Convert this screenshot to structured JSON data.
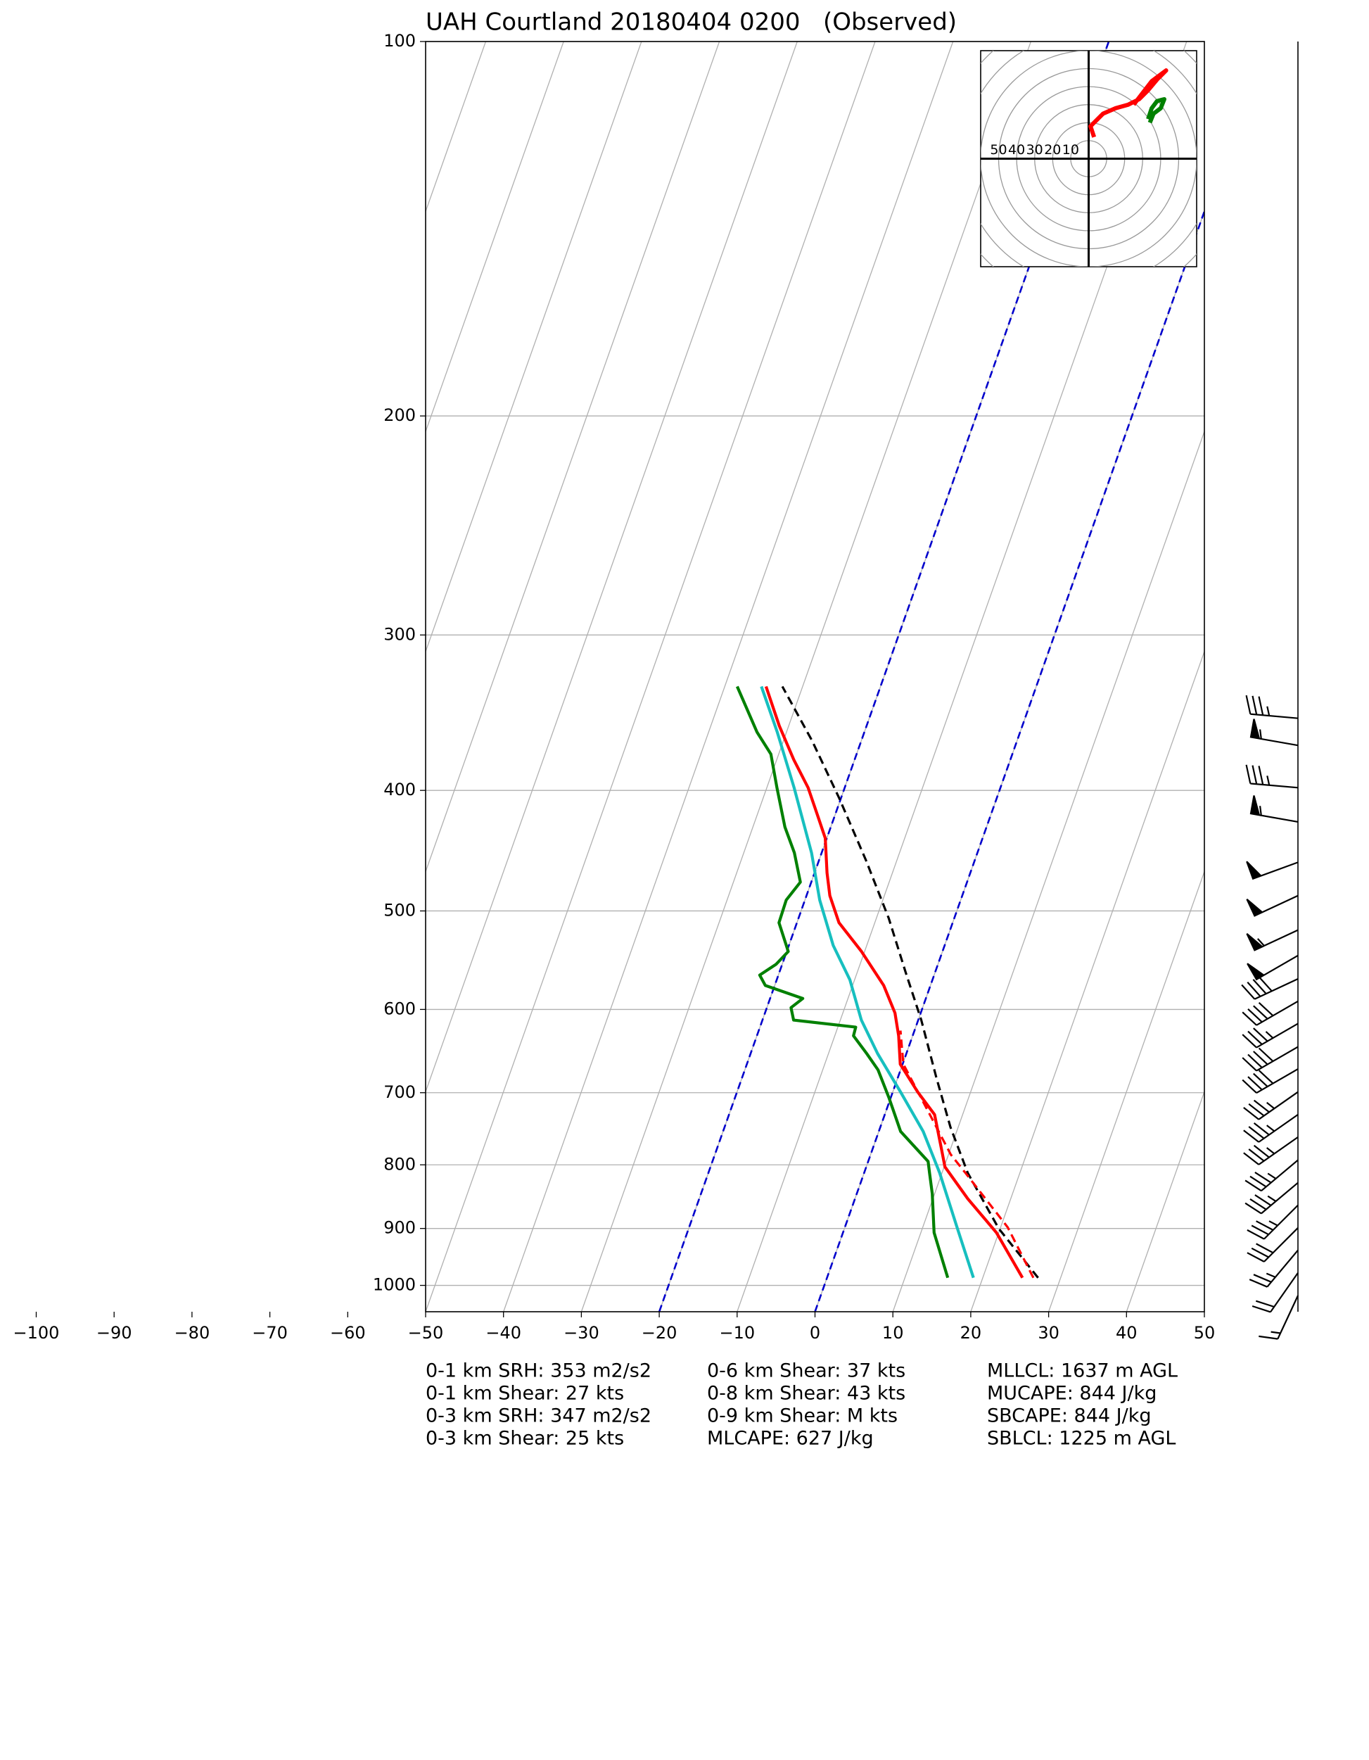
{
  "chart_data": {
    "type": "skewt",
    "title": "UAH Courtland 20180404 0200   (Observed)",
    "xlim": [
      -50,
      50
    ],
    "ylim": [
      1050,
      100
    ],
    "xticks": [
      {
        "value": -100,
        "label": "−100"
      },
      {
        "value": -90,
        "label": "−90"
      },
      {
        "value": -80,
        "label": "−80"
      },
      {
        "value": -70,
        "label": "−70"
      },
      {
        "value": -60,
        "label": "−60"
      },
      {
        "value": -50,
        "label": "−50"
      },
      {
        "value": -40,
        "label": "−40"
      },
      {
        "value": -30,
        "label": "−30"
      },
      {
        "value": -20,
        "label": "−20"
      },
      {
        "value": -10,
        "label": "−10"
      },
      0,
      10,
      20,
      30,
      40,
      50
    ],
    "yticks": [
      100,
      200,
      300,
      400,
      500,
      600,
      700,
      800,
      900,
      1000
    ],
    "log_y": true,
    "grid": true,
    "highlight_isotherms": {
      "color": "#0000cc",
      "values": [
        -20,
        0
      ]
    },
    "series": [
      {
        "color": "#ff0000",
        "dashed": false,
        "values": [
          986,
          907,
          852,
          803,
          776,
          729,
          699,
          664,
          630,
          604,
          574,
          539,
          511,
          486,
          466,
          437,
          420,
          398,
          378,
          355,
          330
        ],
        "x": [
          25.1,
          19.7,
          14.5,
          10.1,
          8.8,
          6.4,
          3.2,
          -0.3,
          -1.8,
          -3.3,
          -6,
          -10.4,
          -14.6,
          -17,
          -18.4,
          -20.2,
          -22.1,
          -24.7,
          -27.8,
          -31.2,
          -34.7
        ]
      },
      {
        "color": "#008000",
        "dashed": false,
        "values": [
          986,
          907,
          844,
          812,
          795,
          752,
          707,
          671,
          651,
          630,
          620,
          612,
          598,
          588,
          574,
          563,
          552,
          539,
          511,
          490,
          474,
          449,
          428,
          398,
          374,
          359,
          330
        ],
        "x": [
          15.5,
          11.7,
          9.7,
          8.4,
          7.7,
          2.8,
          -0.2,
          -2.9,
          -5.1,
          -7.6,
          -7.7,
          -16,
          -16.9,
          -15.8,
          -21.2,
          -22.4,
          -20.8,
          -19.8,
          -22.3,
          -22.4,
          -21.4,
          -23.5,
          -25.9,
          -28.7,
          -31,
          -33.8,
          -38.4
        ]
      },
      {
        "color": "#17bfbf",
        "dashed": false,
        "values": [
          986,
          898,
          812,
          752,
          699,
          651,
          612,
          568,
          533,
          490,
          449,
          398,
          359,
          330
        ],
        "x": [
          18.8,
          14.4,
          9.7,
          5.7,
          1,
          -3.7,
          -7.3,
          -10.6,
          -14.3,
          -18.1,
          -21.3,
          -26.5,
          -31.2,
          -35.3
        ]
      },
      {
        "color": "#000000",
        "dashed": true,
        "values": [
          986,
          900,
          812,
          746,
          680,
          612,
          560,
          507,
          455,
          406,
          365,
          330
        ],
        "x": [
          27.1,
          19.8,
          13.3,
          9,
          4.9,
          0.4,
          -3.8,
          -8.4,
          -14,
          -20.2,
          -26.3,
          -32.6
        ]
      },
      {
        "color": "#ff0000",
        "dashed": true,
        "values": [
          986,
          898,
          812,
          785,
          664,
          624
        ],
        "x": [
          26.5,
          20.9,
          13,
          10.3,
          0.1,
          -1.8
        ]
      }
    ],
    "barbs": {
      "pressure": [
        350,
        368,
        398,
        424,
        457,
        486,
        518,
        543,
        567,
        591,
        616,
        643,
        670,
        699,
        729,
        760,
        793,
        827,
        862,
        899,
        937,
        977,
        1019
      ],
      "speed": [
        35,
        55,
        35,
        55,
        50,
        50,
        55,
        50,
        40,
        40,
        35,
        40,
        40,
        35,
        35,
        35,
        35,
        35,
        35,
        30,
        25,
        20,
        15
      ],
      "direction": [
        275,
        280,
        275,
        280,
        250,
        245,
        245,
        240,
        245,
        240,
        240,
        240,
        240,
        235,
        235,
        235,
        230,
        230,
        225,
        225,
        220,
        215,
        205
      ]
    },
    "hodograph": {
      "rings": [
        10,
        20,
        30,
        40,
        50,
        60,
        70,
        80
      ],
      "ring_labels": [
        50,
        40,
        30,
        20,
        10
      ],
      "series": [
        {
          "color": "#ff0000",
          "u": [
            3,
            1,
            8,
            15,
            22,
            28,
            33,
            38,
            43,
            35,
            25
          ],
          "v": [
            12,
            18,
            25,
            28,
            30,
            33,
            38,
            44,
            49,
            43,
            30
          ]
        },
        {
          "color": "#008000",
          "u": [
            33,
            35,
            38,
            42,
            40,
            36,
            34
          ],
          "v": [
            22,
            28,
            32,
            33,
            28,
            25,
            20
          ]
        }
      ]
    },
    "stats": [
      [
        "0-1 km SRH: 353 m2/s2",
        "0-1 km Shear: 27 kts",
        "0-3 km SRH: 347 m2/s2",
        "0-3 km Shear: 25 kts"
      ],
      [
        "0-6 km Shear: 37 kts",
        "0-8 km Shear: 43 kts",
        "0-9 km Shear: M kts",
        "MLCAPE: 627 J/kg"
      ],
      [
        "MLLCL: 1637 m AGL",
        "MUCAPE: 844 J/kg",
        "SBCAPE: 844 J/kg",
        "SBLCL: 1225 m AGL"
      ]
    ]
  }
}
